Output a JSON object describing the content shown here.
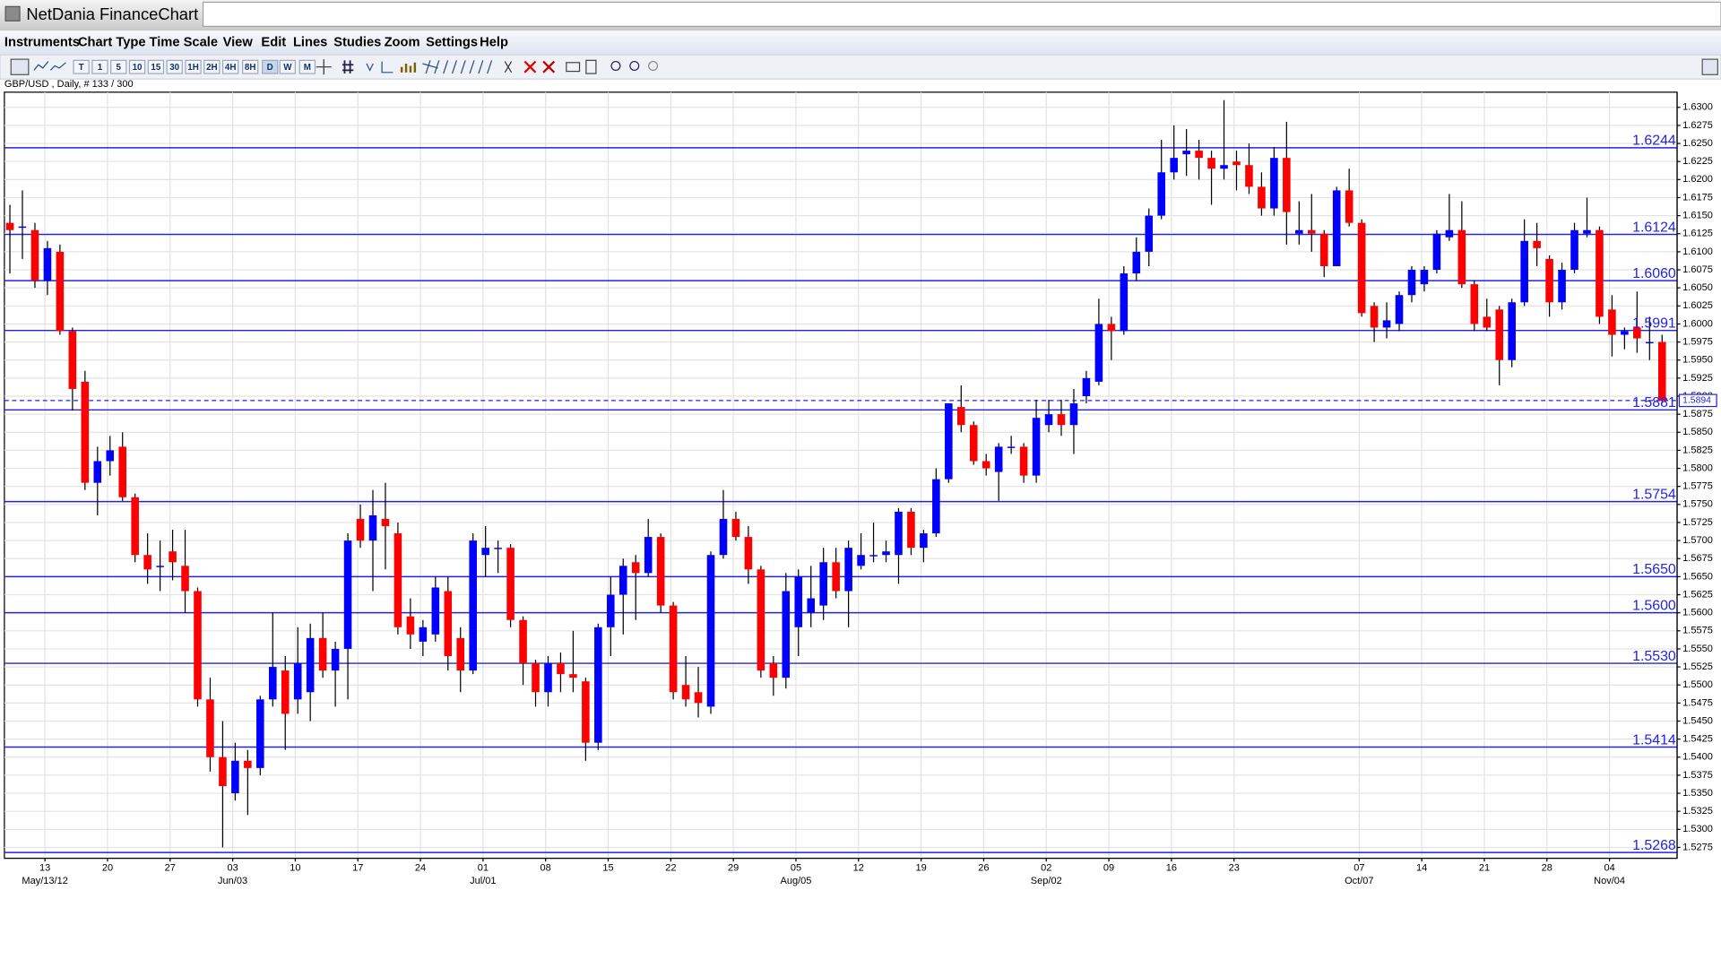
{
  "window": {
    "title": "NetDania FinanceChart",
    "menu": [
      "Instruments",
      "Chart Type",
      "Time Scale",
      "View",
      "Edit",
      "Lines",
      "Studies",
      "Zoom",
      "Settings",
      "Help"
    ],
    "toolbar": [
      "T",
      "1",
      "5",
      "10",
      "15",
      "30",
      "1H",
      "2H",
      "4H",
      "8H",
      "D",
      "W",
      "M"
    ]
  },
  "chart_data": {
    "type": "candlestick",
    "subtitle": "GBP/USD , Daily, # 133 / 300",
    "up_color": "#0000ff",
    "down_color": "#ff0000",
    "level_color": "#2323e6",
    "grid": true,
    "open": [
      1.614,
      1.6135,
      1.613,
      1.606,
      1.61,
      1.599,
      1.592,
      1.578,
      1.581,
      1.583,
      1.576,
      1.568,
      1.5665,
      1.5685,
      1.5665,
      1.563,
      1.548,
      1.54,
      1.535,
      1.5395,
      1.5385,
      1.548,
      1.552,
      1.548,
      1.549,
      1.5565,
      1.552,
      1.555,
      1.573,
      1.57,
      1.573,
      1.571,
      1.5595,
      1.556,
      1.557,
      1.563,
      1.5565,
      1.552,
      1.568,
      1.569,
      1.569,
      1.559,
      1.553,
      1.549,
      1.553,
      1.5515,
      1.5505,
      1.542,
      1.558,
      1.5625,
      1.567,
      1.5655,
      1.5705,
      1.561,
      1.55,
      1.549,
      1.547,
      1.568,
      1.573,
      1.5705,
      1.566,
      1.553,
      1.551,
      1.558,
      1.56,
      1.561,
      1.567,
      1.563,
      1.5665,
      1.568,
      1.568,
      1.568,
      1.574,
      1.569,
      1.571,
      1.5785,
      1.5885,
      1.586,
      1.581,
      1.5795,
      1.583,
      1.583,
      1.579,
      1.586,
      1.5875,
      1.586,
      1.59,
      1.592,
      1.6,
      1.599,
      1.607,
      1.61,
      1.615,
      1.621,
      1.6235,
      1.624,
      1.623,
      1.6215,
      1.6225,
      1.622,
      1.619,
      1.616,
      1.623,
      1.6125,
      1.613,
      1.6125,
      1.608,
      1.6185,
      1.614,
      1.6025,
      1.5995,
      1.6,
      1.604,
      1.6055,
      1.6075,
      1.612,
      1.613,
      1.6055,
      1.601,
      1.602,
      1.595,
      1.603,
      1.6115,
      1.609,
      1.603,
      1.6075,
      1.6125,
      1.613,
      1.602,
      1.5985,
      1.5995,
      1.5975,
      1.5975
    ],
    "high": [
      1.6165,
      1.6185,
      1.614,
      1.6115,
      1.611,
      1.5995,
      1.5935,
      1.583,
      1.5845,
      1.585,
      1.5765,
      1.571,
      1.57,
      1.5715,
      1.5715,
      1.5635,
      1.551,
      1.545,
      1.542,
      1.541,
      1.5485,
      1.56,
      1.554,
      1.558,
      1.5585,
      1.56,
      1.556,
      1.571,
      1.575,
      1.577,
      1.578,
      1.5725,
      1.562,
      1.559,
      1.565,
      1.565,
      1.558,
      1.571,
      1.572,
      1.57,
      1.5695,
      1.5595,
      1.5535,
      1.554,
      1.5545,
      1.5575,
      1.551,
      1.5585,
      1.565,
      1.5675,
      1.568,
      1.573,
      1.571,
      1.5615,
      1.554,
      1.5525,
      1.5685,
      1.577,
      1.574,
      1.572,
      1.5665,
      1.554,
      1.5655,
      1.566,
      1.5665,
      1.569,
      1.569,
      1.57,
      1.571,
      1.5725,
      1.57,
      1.5745,
      1.5745,
      1.5715,
      1.58,
      1.589,
      1.5915,
      1.5865,
      1.582,
      1.5835,
      1.5845,
      1.5835,
      1.5895,
      1.5895,
      1.5895,
      1.591,
      1.5935,
      1.6035,
      1.601,
      1.608,
      1.612,
      1.616,
      1.6255,
      1.6275,
      1.627,
      1.6255,
      1.624,
      1.631,
      1.624,
      1.625,
      1.621,
      1.6245,
      1.628,
      1.617,
      1.618,
      1.613,
      1.619,
      1.6215,
      1.6145,
      1.603,
      1.603,
      1.6045,
      1.608,
      1.608,
      1.613,
      1.618,
      1.617,
      1.606,
      1.6035,
      1.6025,
      1.6035,
      1.6145,
      1.614,
      1.6095,
      1.6085,
      1.614,
      1.6175,
      1.6135,
      1.604,
      1.5995,
      1.6045,
      1.601,
      1.5985
    ],
    "low": [
      1.607,
      1.609,
      1.605,
      1.604,
      1.5985,
      1.588,
      1.577,
      1.5735,
      1.579,
      1.5755,
      1.567,
      1.564,
      1.563,
      1.5645,
      1.56,
      1.547,
      1.538,
      1.5275,
      1.534,
      1.532,
      1.5375,
      1.547,
      1.541,
      1.546,
      1.545,
      1.551,
      1.547,
      1.548,
      1.569,
      1.563,
      1.566,
      1.557,
      1.555,
      1.554,
      1.556,
      1.552,
      1.549,
      1.5515,
      1.565,
      1.5655,
      1.558,
      1.55,
      1.547,
      1.547,
      1.549,
      1.549,
      1.5395,
      1.541,
      1.554,
      1.557,
      1.559,
      1.565,
      1.56,
      1.548,
      1.547,
      1.5455,
      1.546,
      1.5675,
      1.57,
      1.564,
      1.551,
      1.5485,
      1.5495,
      1.554,
      1.558,
      1.559,
      1.562,
      1.558,
      1.566,
      1.567,
      1.567,
      1.564,
      1.568,
      1.567,
      1.5705,
      1.578,
      1.585,
      1.5805,
      1.579,
      1.5755,
      1.582,
      1.578,
      1.578,
      1.585,
      1.5845,
      1.582,
      1.589,
      1.5915,
      1.595,
      1.5985,
      1.606,
      1.608,
      1.6145,
      1.62,
      1.6205,
      1.62,
      1.6165,
      1.62,
      1.6185,
      1.618,
      1.615,
      1.615,
      1.611,
      1.611,
      1.61,
      1.6065,
      1.608,
      1.6135,
      1.601,
      1.5975,
      1.598,
      1.599,
      1.603,
      1.6045,
      1.607,
      1.6115,
      1.605,
      1.599,
      1.599,
      1.5915,
      1.594,
      1.6025,
      1.608,
      1.601,
      1.602,
      1.607,
      1.612,
      1.6,
      1.5955,
      1.5965,
      1.596,
      1.595,
      1.589
    ],
    "close": [
      1.613,
      1.6135,
      1.606,
      1.6105,
      1.599,
      1.591,
      1.578,
      1.581,
      1.5825,
      1.576,
      1.568,
      1.566,
      1.5665,
      1.567,
      1.563,
      1.548,
      1.54,
      1.536,
      1.5395,
      1.5385,
      1.548,
      1.5525,
      1.546,
      1.553,
      1.5565,
      1.552,
      1.555,
      1.57,
      1.57,
      1.5735,
      1.572,
      1.558,
      1.557,
      1.558,
      1.5635,
      1.554,
      1.552,
      1.57,
      1.569,
      1.569,
      1.559,
      1.553,
      1.549,
      1.553,
      1.5515,
      1.551,
      1.542,
      1.558,
      1.5625,
      1.5665,
      1.5655,
      1.5705,
      1.561,
      1.549,
      1.548,
      1.5475,
      1.568,
      1.573,
      1.5705,
      1.566,
      1.552,
      1.551,
      1.563,
      1.565,
      1.562,
      1.567,
      1.563,
      1.569,
      1.568,
      1.568,
      1.5685,
      1.574,
      1.569,
      1.571,
      1.5785,
      1.589,
      1.586,
      1.581,
      1.58,
      1.583,
      1.583,
      1.579,
      1.587,
      1.5875,
      1.586,
      1.589,
      1.5925,
      1.6,
      1.599,
      1.607,
      1.61,
      1.615,
      1.621,
      1.623,
      1.624,
      1.623,
      1.6215,
      1.622,
      1.622,
      1.619,
      1.616,
      1.623,
      1.6155,
      1.613,
      1.6125,
      1.608,
      1.6185,
      1.614,
      1.6015,
      1.5995,
      1.6005,
      1.604,
      1.6075,
      1.6075,
      1.6125,
      1.613,
      1.6055,
      1.6,
      1.5995,
      1.595,
      1.603,
      1.6115,
      1.6105,
      1.603,
      1.6075,
      1.613,
      1.613,
      1.601,
      1.5985,
      1.599,
      1.598,
      1.5975,
      1.5894
    ],
    "levels": [
      1.6244,
      1.6124,
      {
        "value": 1.606,
        "label": "1.6060"
      },
      1.5991,
      1.5881,
      1.5754,
      {
        "value": 1.565,
        "label": "1.5650"
      },
      {
        "value": 1.56,
        "label": "1.5600"
      },
      {
        "value": 1.553,
        "label": "1.5530"
      },
      1.5414,
      1.5268
    ],
    "last": 1.5894,
    "xlim": [
      -0.44,
      133.2
    ],
    "ylim": [
      1.526,
      1.6321
    ],
    "yticks": [
      {
        "value": 1.63,
        "label": "1.6300"
      },
      1.6275,
      {
        "value": 1.625,
        "label": "1.6250"
      },
      1.6225,
      {
        "value": 1.62,
        "label": "1.6200"
      },
      1.6175,
      {
        "value": 1.615,
        "label": "1.6150"
      },
      1.6125,
      {
        "value": 1.61,
        "label": "1.6100"
      },
      1.6075,
      {
        "value": 1.605,
        "label": "1.6050"
      },
      1.6025,
      {
        "value": 1.6,
        "label": "1.6000"
      },
      1.5975,
      {
        "value": 1.595,
        "label": "1.5950"
      },
      1.5925,
      {
        "value": 1.59,
        "label": "1.5900"
      },
      1.5875,
      {
        "value": 1.585,
        "label": "1.5850"
      },
      1.5825,
      {
        "value": 1.58,
        "label": "1.5800"
      },
      1.5775,
      {
        "value": 1.575,
        "label": "1.5750"
      },
      1.5725,
      {
        "value": 1.57,
        "label": "1.5700"
      },
      1.5675,
      {
        "value": 1.565,
        "label": "1.5650"
      },
      1.5625,
      {
        "value": 1.56,
        "label": "1.5600"
      },
      1.5575,
      {
        "value": 1.555,
        "label": "1.5550"
      },
      1.5525,
      {
        "value": 1.55,
        "label": "1.5500"
      },
      1.5475,
      {
        "value": 1.545,
        "label": "1.5450"
      },
      1.5425,
      {
        "value": 1.54,
        "label": "1.5400"
      },
      1.5375,
      {
        "value": 1.535,
        "label": "1.5350"
      },
      1.5325,
      {
        "value": 1.53,
        "label": "1.5300"
      },
      1.5275
    ],
    "xticks": [
      {
        "value": 2.8,
        "label": "13"
      },
      {
        "value": 7.8,
        "label": "20"
      },
      {
        "value": 12.8,
        "label": "27"
      },
      {
        "value": 17.8,
        "label": "03"
      },
      {
        "value": 22.8,
        "label": "10"
      },
      {
        "value": 27.8,
        "label": "17"
      },
      {
        "value": 32.8,
        "label": "24"
      },
      {
        "value": 37.8,
        "label": "01"
      },
      {
        "value": 42.8,
        "label": "08"
      },
      {
        "value": 47.8,
        "label": "15"
      },
      {
        "value": 52.8,
        "label": "22"
      },
      {
        "value": 57.8,
        "label": "29"
      },
      {
        "value": 62.8,
        "label": "05"
      },
      {
        "value": 67.8,
        "label": "12"
      },
      {
        "value": 72.8,
        "label": "19"
      },
      {
        "value": 77.8,
        "label": "26"
      },
      {
        "value": 82.8,
        "label": "02"
      },
      {
        "value": 87.8,
        "label": "09"
      },
      {
        "value": 92.8,
        "label": "16"
      },
      {
        "value": 97.8,
        "label": "23"
      },
      {
        "value": 107.8,
        "label": "07"
      },
      {
        "value": 112.8,
        "label": "14"
      },
      {
        "value": 117.8,
        "label": "21"
      },
      {
        "value": 122.8,
        "label": "28"
      },
      {
        "value": 127.8,
        "label": "04"
      }
    ],
    "xticks2": [
      {
        "value": 2.8,
        "label": "May/13/12"
      },
      {
        "value": 17.8,
        "label": "Jun/03"
      },
      {
        "value": 37.8,
        "label": "Jul/01"
      },
      {
        "value": 62.8,
        "label": "Aug/05"
      },
      {
        "value": 82.8,
        "label": "Sep/02"
      },
      {
        "value": 107.8,
        "label": "Oct/07"
      },
      {
        "value": 127.8,
        "label": "Nov/04"
      }
    ]
  }
}
